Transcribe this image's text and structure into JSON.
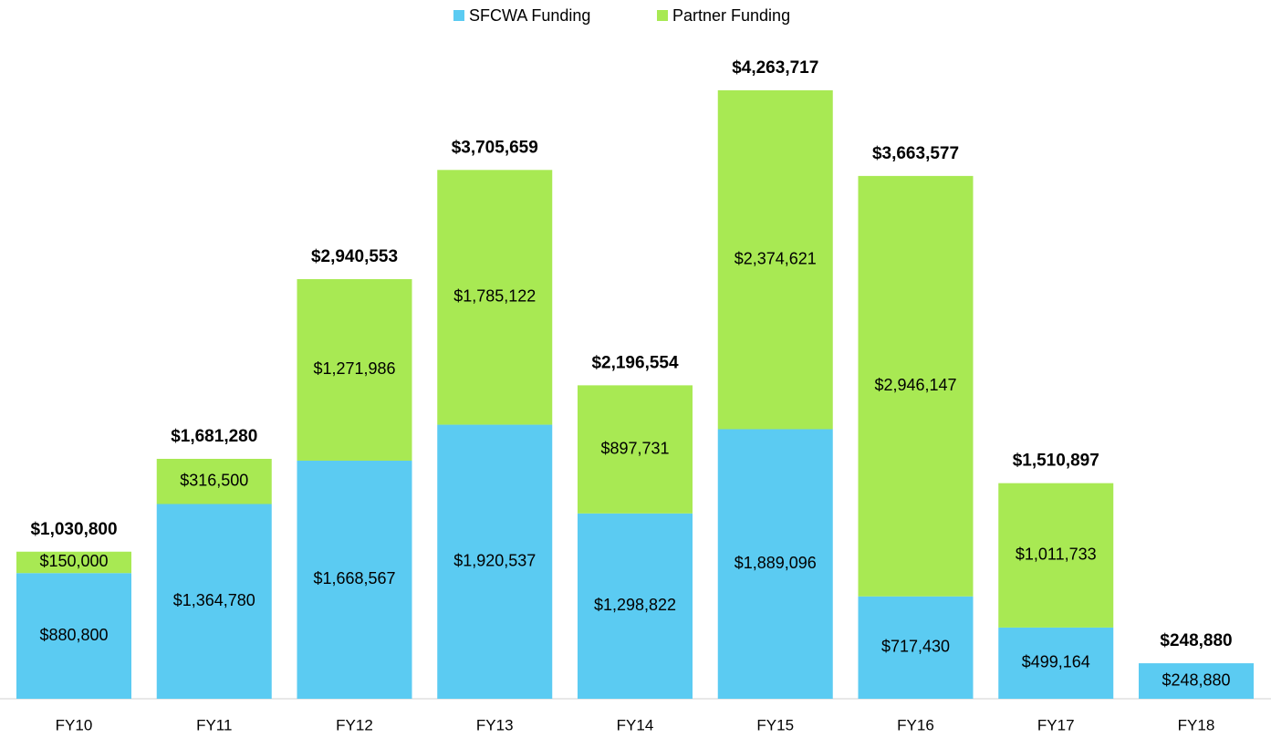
{
  "chart_data": {
    "type": "stacked_bar",
    "categories": [
      "FY10",
      "FY11",
      "FY12",
      "FY13",
      "FY14",
      "FY15",
      "FY16",
      "FY17",
      "FY18"
    ],
    "series": [
      {
        "name": "SFCWA Funding",
        "color": "#5bcbf2",
        "values": [
          880800,
          1364780,
          1668567,
          1920537,
          1298822,
          1889096,
          717430,
          499164,
          248880
        ],
        "value_labels": [
          "$880,800",
          "$1,364,780",
          "$1,668,567",
          "$1,920,537",
          "$1,298,822",
          "$1,889,096",
          "$717,430",
          "$499,164",
          "$248,880"
        ]
      },
      {
        "name": "Partner Funding",
        "color": "#a8e953",
        "values": [
          150000,
          316500,
          1271986,
          1785122,
          897731,
          2374621,
          2946147,
          1011733,
          null
        ],
        "value_labels": [
          "$150,000",
          "$316,500",
          "$1,271,986",
          "$1,785,122",
          "$897,731",
          "$2,374,621",
          "$2,946,147",
          "$1,011,733",
          null
        ]
      }
    ],
    "totals": {
      "values": [
        1030800,
        1681280,
        2940553,
        3705659,
        2196554,
        4263717,
        3663577,
        1510897,
        248880
      ],
      "value_labels": [
        "$1,030,800",
        "$1,681,280",
        "$2,940,553",
        "$3,705,659",
        "$2,196,554",
        "$4,263,717",
        "$3,663,577",
        "$1,510,897",
        "$248,880"
      ]
    },
    "legend": "top"
  }
}
